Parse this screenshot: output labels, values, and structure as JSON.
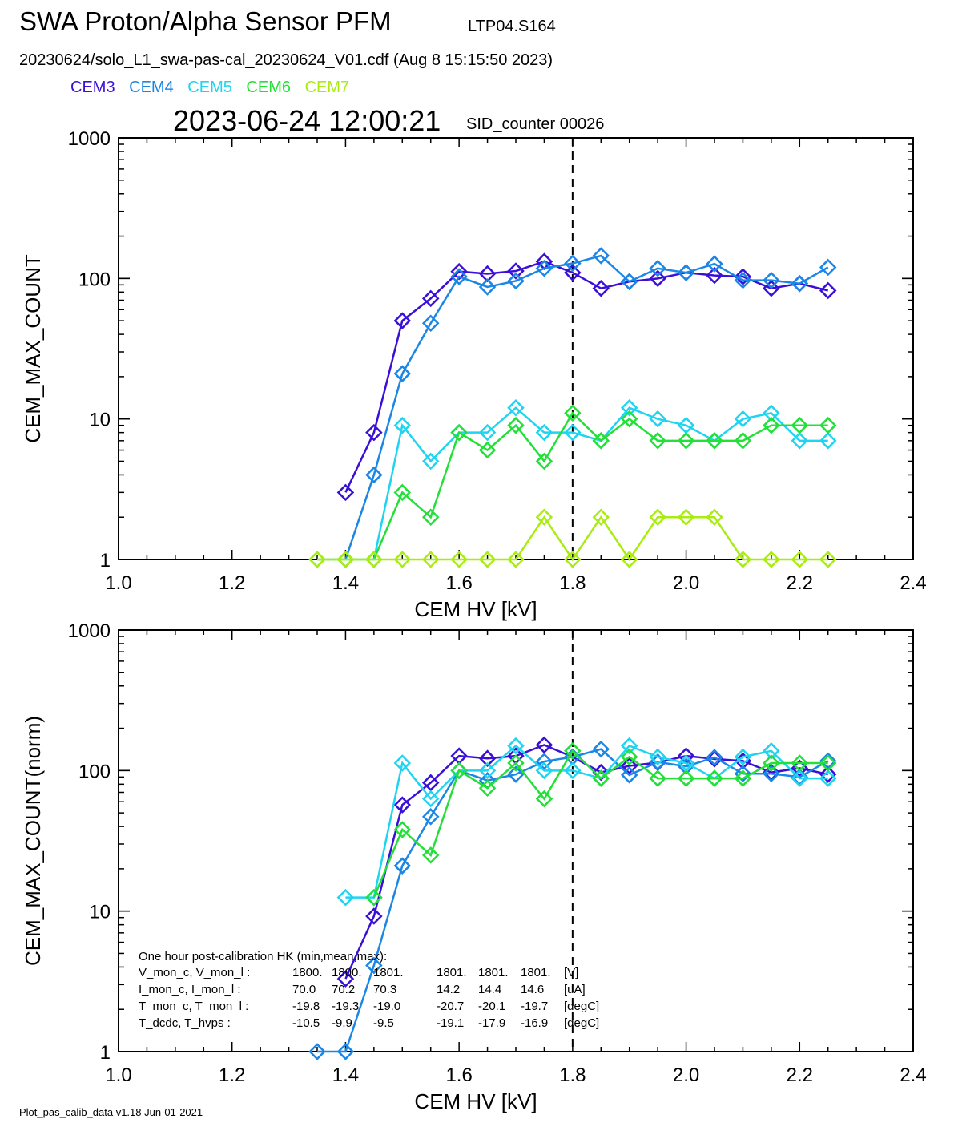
{
  "header": {
    "title": "SWA Proton/Alpha Sensor PFM",
    "run_id": "LTP04.S164",
    "file_line": "20230624/solo_L1_swa-pas-cal_20230624_V01.cdf  (Aug  8 15:15:50 2023)",
    "timestamp": "2023-06-24 12:00:21",
    "sid": "SID_counter 00026"
  },
  "legend": [
    {
      "name": "CEM3",
      "color": "#3a10d8"
    },
    {
      "name": "CEM4",
      "color": "#1a86e6"
    },
    {
      "name": "CEM5",
      "color": "#1fd4f0"
    },
    {
      "name": "CEM6",
      "color": "#22e038"
    },
    {
      "name": "CEM7",
      "color": "#a9ec10"
    }
  ],
  "footer": "Plot_pas_calib_data v1.18 Jun-01-2021",
  "chart_data": [
    {
      "type": "line",
      "scale": "log",
      "xlabel": "CEM HV [kV]",
      "ylabel": "CEM_MAX_COUNT",
      "xlim": [
        1.0,
        2.4
      ],
      "ylim": [
        1,
        1000
      ],
      "x_ticks": [
        "1.0",
        "1.2",
        "1.4",
        "1.6",
        "1.8",
        "2.0",
        "2.2",
        "2.4"
      ],
      "y_ticks": [
        "1",
        "10",
        "100",
        "1000"
      ],
      "vline": 1.8,
      "x": [
        1.35,
        1.4,
        1.45,
        1.5,
        1.55,
        1.6,
        1.65,
        1.7,
        1.75,
        1.8,
        1.85,
        1.9,
        1.95,
        2.0,
        2.05,
        2.1,
        2.15,
        2.2,
        2.25
      ],
      "series": [
        {
          "name": "CEM3",
          "color": "#3a10d8",
          "values": [
            null,
            3,
            8,
            50,
            72,
            112,
            108,
            113,
            132,
            110,
            85,
            95,
            100,
            110,
            105,
            103,
            85,
            92,
            82
          ]
        },
        {
          "name": "CEM4",
          "color": "#1a86e6",
          "values": [
            null,
            1,
            4,
            21,
            48,
            103,
            87,
            96,
            118,
            128,
            145,
            95,
            118,
            110,
            127,
            97,
            97,
            92,
            120
          ]
        },
        {
          "name": "CEM5",
          "color": "#1fd4f0",
          "values": [
            null,
            null,
            1,
            9,
            5,
            8,
            8,
            12,
            8,
            8,
            7,
            12,
            10,
            9,
            7,
            10,
            11,
            7,
            7
          ]
        },
        {
          "name": "CEM6",
          "color": "#22e038",
          "values": [
            1,
            1,
            1,
            3,
            2,
            8,
            6,
            9,
            5,
            11,
            7,
            10,
            7,
            7,
            7,
            7,
            9,
            9,
            9
          ]
        },
        {
          "name": "CEM7",
          "color": "#a9ec10",
          "values": [
            1,
            1,
            1,
            1,
            1,
            1,
            1,
            1,
            2,
            1,
            2,
            1,
            2,
            2,
            2,
            1,
            1,
            1,
            1
          ]
        }
      ]
    },
    {
      "type": "line",
      "scale": "log",
      "xlabel": "CEM HV [kV]",
      "ylabel": "CEM_MAX_COUNT(norm)",
      "xlim": [
        1.0,
        2.4
      ],
      "ylim": [
        1,
        1000
      ],
      "x_ticks": [
        "1.0",
        "1.2",
        "1.4",
        "1.6",
        "1.8",
        "2.0",
        "2.2",
        "2.4"
      ],
      "y_ticks": [
        "1",
        "10",
        "100",
        "1000"
      ],
      "vline": 1.8,
      "x": [
        1.35,
        1.4,
        1.45,
        1.5,
        1.55,
        1.6,
        1.65,
        1.7,
        1.75,
        1.8,
        1.85,
        1.9,
        1.95,
        2.0,
        2.05,
        2.1,
        2.15,
        2.2,
        2.25
      ],
      "series": [
        {
          "name": "CEM3",
          "color": "#3a10d8",
          "values": [
            null,
            3.3,
            9.2,
            57,
            82,
            127,
            122,
            127,
            152,
            125,
            97,
            108,
            114,
            127,
            121,
            117,
            97,
            104,
            94
          ]
        },
        {
          "name": "CEM4",
          "color": "#1a86e6",
          "values": [
            1,
            1,
            4.1,
            21,
            47,
            100,
            85,
            94,
            116,
            125,
            142,
            93,
            115,
            107,
            124,
            95,
            95,
            90,
            117
          ]
        },
        {
          "name": "CEM5",
          "color": "#1fd4f0",
          "values": [
            null,
            12.5,
            12.5,
            113,
            63,
            100,
            100,
            150,
            100,
            100,
            88,
            150,
            125,
            113,
            88,
            125,
            138,
            88,
            88
          ]
        },
        {
          "name": "CEM6",
          "color": "#22e038",
          "values": [
            null,
            null,
            12.5,
            38,
            25,
            100,
            75,
            113,
            63,
            138,
            88,
            125,
            88,
            88,
            88,
            88,
            113,
            113,
            113
          ]
        }
      ]
    }
  ],
  "hk": {
    "title": "One hour post-calibration HK (min,mean,max):",
    "rows": [
      {
        "label": "V_mon_c, V_mon_l :",
        "v1": "1800.",
        "v2": "1800.",
        "v3": "1801.",
        "v4": "1801.",
        "v5": "1801.",
        "v6": "1801.",
        "unit": "[V]"
      },
      {
        "label": "I_mon_c,  I_mon_l :",
        "v1": "70.0",
        "v2": "70.2",
        "v3": "70.3",
        "v4": "14.2",
        "v5": "14.4",
        "v6": "14.6",
        "unit": "[uA]"
      },
      {
        "label": "T_mon_c, T_mon_l :",
        "v1": "-19.8",
        "v2": "-19.3",
        "v3": "-19.0",
        "v4": "-20.7",
        "v5": "-20.1",
        "v6": "-19.7",
        "unit": "[degC]"
      },
      {
        "label": "T_dcdc,    T_hvps :",
        "v1": "-10.5",
        "v2": "-9.9",
        "v3": "-9.5",
        "v4": "-19.1",
        "v5": "-17.9",
        "v6": "-16.9",
        "unit": "[degC]"
      }
    ]
  }
}
